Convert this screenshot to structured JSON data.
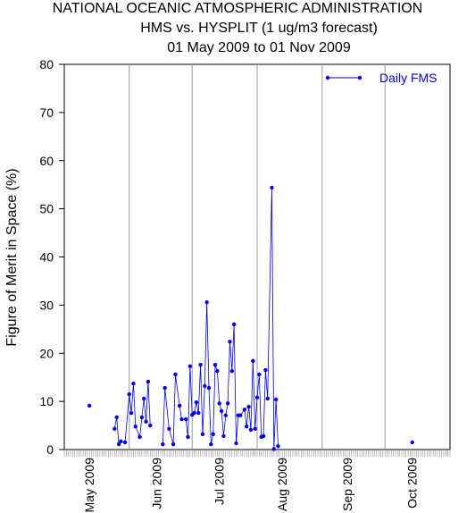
{
  "chart_data": {
    "type": "line",
    "title": "NATIONAL OCEANIC ATMOSPHERIC ADMINISTRATION",
    "subtitle": "HMS vs. HYSPLIT (1 ug/m3 forecast)",
    "subtitle2": "01 May 2009 to 01 Nov 2009",
    "y_label": "Figure of Merit in Space (%)",
    "xlim": [
      0,
      184
    ],
    "xticks": [
      {
        "value": 12,
        "label": "May 2009"
      },
      {
        "value": 44,
        "label": "Jun 2009"
      },
      {
        "value": 74,
        "label": "Jul 2009"
      },
      {
        "value": 104,
        "label": "Aug 2009"
      },
      {
        "value": 135,
        "label": "Sep 2009"
      },
      {
        "value": 166,
        "label": "Oct 2009"
      }
    ],
    "xgrid": [
      31,
      61,
      92,
      123,
      153
    ],
    "ylim": [
      0,
      80
    ],
    "yticks": [
      0,
      10,
      20,
      30,
      40,
      50,
      60,
      70,
      80
    ],
    "legend": "top-right",
    "x": [
      12,
      18,
      24,
      25,
      26,
      27,
      29,
      31,
      32,
      33,
      34,
      36,
      37,
      38,
      39,
      40,
      41,
      44,
      47,
      48,
      50,
      52,
      53,
      55,
      56,
      58,
      59,
      60,
      61,
      62,
      63,
      64,
      65,
      66,
      67,
      68,
      69,
      70,
      71,
      72,
      73,
      74,
      75,
      76,
      77,
      78,
      79,
      80,
      81,
      82,
      83,
      84,
      86,
      87,
      88,
      89,
      90,
      91,
      92,
      93,
      94,
      95,
      96,
      97,
      99,
      100,
      101,
      102,
      130,
      166
    ],
    "series": [
      {
        "name": "Daily FMS",
        "color": "#0000ee",
        "values": [
          9.1,
          null,
          4.3,
          6.7,
          1.1,
          1.7,
          1.5,
          11.5,
          7.6,
          13.7,
          4.8,
          2.6,
          6.7,
          10.6,
          5.8,
          14.1,
          5.0,
          null,
          1.1,
          12.8,
          4.3,
          1.1,
          15.6,
          9.1,
          6.3,
          6.3,
          2.6,
          17.3,
          7.2,
          7.6,
          9.8,
          7.6,
          17.6,
          3.2,
          13.2,
          30.6,
          12.8,
          1.1,
          3.2,
          17.6,
          16.3,
          9.6,
          8.0,
          2.8,
          7.1,
          9.6,
          22.4,
          16.3,
          26.0,
          1.3,
          7.1,
          7.1,
          8.3,
          4.8,
          8.9,
          4.1,
          18.4,
          4.3,
          10.8,
          15.6,
          2.6,
          2.8,
          16.5,
          10.6,
          54.4,
          0.1,
          10.4,
          0.7,
          null,
          1.5
        ]
      }
    ]
  }
}
